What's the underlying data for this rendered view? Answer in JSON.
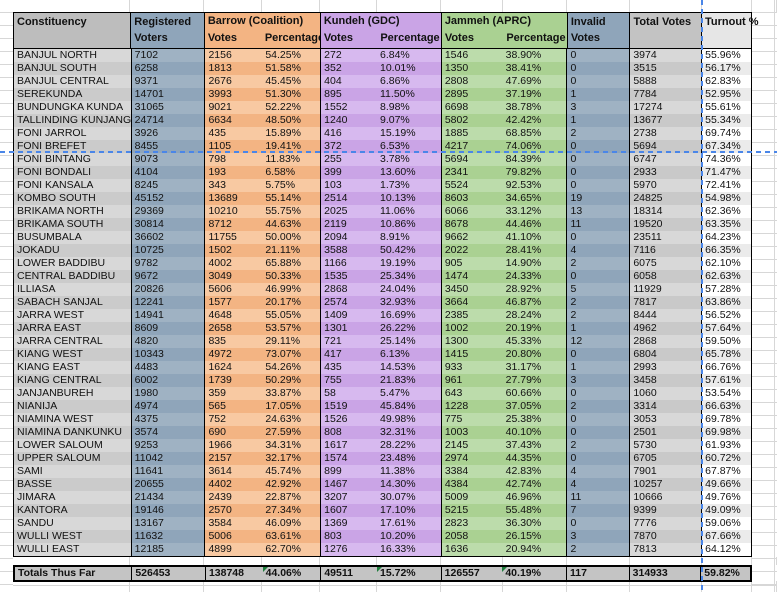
{
  "header": {
    "constituency": "Constituency",
    "registered": "Registered Voters",
    "groups": [
      {
        "name": "Barrow (Coalition)",
        "votes_label": "Votes",
        "pct_label": "Percentage"
      },
      {
        "name": "Kundeh (GDC)",
        "votes_label": "Votes",
        "pct_label": "Percentage"
      },
      {
        "name": "Jammeh (APRC)",
        "votes_label": "Votes",
        "pct_label": "Percentage"
      }
    ],
    "invalid": "Invalid Votes",
    "total": "Total Votes",
    "turnout": "Turnout %"
  },
  "rows": [
    [
      "BANJUL NORTH",
      "7102",
      "2156",
      "54.25%",
      "272",
      "6.84%",
      "1546",
      "38.90%",
      "0",
      "3974",
      "55.96%"
    ],
    [
      "BANJUL SOUTH",
      "6258",
      "1813",
      "51.58%",
      "352",
      "10.01%",
      "1350",
      "38.41%",
      "0",
      "3515",
      "56.17%"
    ],
    [
      "BANJUL CENTRAL",
      "9371",
      "2676",
      "45.45%",
      "404",
      "6.86%",
      "2808",
      "47.69%",
      "0",
      "5888",
      "62.83%"
    ],
    [
      "SEREKUNDA",
      "14701",
      "3993",
      "51.30%",
      "895",
      "11.50%",
      "2895",
      "37.19%",
      "1",
      "7784",
      "52.95%"
    ],
    [
      "BUNDUNGKA KUNDA",
      "31065",
      "9021",
      "52.22%",
      "1552",
      "8.98%",
      "6698",
      "38.78%",
      "3",
      "17274",
      "55.61%"
    ],
    [
      "TALLINDING KUNJANG",
      "24714",
      "6634",
      "48.50%",
      "1240",
      "9.07%",
      "5802",
      "42.42%",
      "1",
      "13677",
      "55.34%"
    ],
    [
      "FONI JARROL",
      "3926",
      "435",
      "15.89%",
      "416",
      "15.19%",
      "1885",
      "68.85%",
      "2",
      "2738",
      "69.74%"
    ],
    [
      "FONI BREFET",
      "8455",
      "1105",
      "19.41%",
      "372",
      "6.53%",
      "4217",
      "74.06%",
      "0",
      "5694",
      "67.34%"
    ],
    [
      "FONI BINTANG",
      "9073",
      "798",
      "11.83%",
      "255",
      "3.78%",
      "5694",
      "84.39%",
      "0",
      "6747",
      "74.36%"
    ],
    [
      "FONI BONDALI",
      "4104",
      "193",
      "6.58%",
      "399",
      "13.60%",
      "2341",
      "79.82%",
      "0",
      "2933",
      "71.47%"
    ],
    [
      "FONI KANSALA",
      "8245",
      "343",
      "5.75%",
      "103",
      "1.73%",
      "5524",
      "92.53%",
      "0",
      "5970",
      "72.41%"
    ],
    [
      "KOMBO SOUTH",
      "45152",
      "13689",
      "55.14%",
      "2514",
      "10.13%",
      "8603",
      "34.65%",
      "19",
      "24825",
      "54.98%"
    ],
    [
      "BRIKAMA NORTH",
      "29369",
      "10210",
      "55.75%",
      "2025",
      "11.06%",
      "6066",
      "33.12%",
      "13",
      "18314",
      "62.36%"
    ],
    [
      "BRIKAMA SOUTH",
      "30814",
      "8712",
      "44.63%",
      "2119",
      "10.86%",
      "8678",
      "44.46%",
      "11",
      "19520",
      "63.35%"
    ],
    [
      "BUSUMBALA",
      "36602",
      "11755",
      "50.00%",
      "2094",
      "8.91%",
      "9662",
      "41.10%",
      "0",
      "23511",
      "64.23%"
    ],
    [
      "JOKADU",
      "10725",
      "1502",
      "21.11%",
      "3588",
      "50.42%",
      "2022",
      "28.41%",
      "4",
      "7116",
      "66.35%"
    ],
    [
      "LOWER BADDIBU",
      "9782",
      "4002",
      "65.88%",
      "1166",
      "19.19%",
      "905",
      "14.90%",
      "2",
      "6075",
      "62.10%"
    ],
    [
      "CENTRAL BADDIBU",
      "9672",
      "3049",
      "50.33%",
      "1535",
      "25.34%",
      "1474",
      "24.33%",
      "0",
      "6058",
      "62.63%"
    ],
    [
      "ILLIASA",
      "20826",
      "5606",
      "46.99%",
      "2868",
      "24.04%",
      "3450",
      "28.92%",
      "5",
      "11929",
      "57.28%"
    ],
    [
      "SABACH SANJAL",
      "12241",
      "1577",
      "20.17%",
      "2574",
      "32.93%",
      "3664",
      "46.87%",
      "2",
      "7817",
      "63.86%"
    ],
    [
      "JARRA WEST",
      "14941",
      "4648",
      "55.05%",
      "1409",
      "16.69%",
      "2385",
      "28.24%",
      "2",
      "8444",
      "56.52%"
    ],
    [
      "JARRA EAST",
      "8609",
      "2658",
      "53.57%",
      "1301",
      "26.22%",
      "1002",
      "20.19%",
      "1",
      "4962",
      "57.64%"
    ],
    [
      "JARRA CENTRAL",
      "4820",
      "835",
      "29.11%",
      "721",
      "25.14%",
      "1300",
      "45.33%",
      "12",
      "2868",
      "59.50%"
    ],
    [
      "KIANG WEST",
      "10343",
      "4972",
      "73.07%",
      "417",
      "6.13%",
      "1415",
      "20.80%",
      "0",
      "6804",
      "65.78%"
    ],
    [
      "KIANG EAST",
      "4483",
      "1624",
      "54.26%",
      "435",
      "14.53%",
      "933",
      "31.17%",
      "1",
      "2993",
      "66.76%"
    ],
    [
      "KIANG CENTRAL",
      "6002",
      "1739",
      "50.29%",
      "755",
      "21.83%",
      "961",
      "27.79%",
      "3",
      "3458",
      "57.61%"
    ],
    [
      "JANJANBUREH",
      "1980",
      "359",
      "33.87%",
      "58",
      "5.47%",
      "643",
      "60.66%",
      "0",
      "1060",
      "53.54%"
    ],
    [
      "NIANIJA",
      "4974",
      "565",
      "17.05%",
      "1519",
      "45.84%",
      "1228",
      "37.05%",
      "2",
      "3314",
      "66.63%"
    ],
    [
      "NIAMINA WEST",
      "4375",
      "752",
      "24.63%",
      "1526",
      "49.98%",
      "775",
      "25.38%",
      "0",
      "3053",
      "69.78%"
    ],
    [
      "NIAMINA DANKUNKU",
      "3574",
      "690",
      "27.59%",
      "808",
      "32.31%",
      "1003",
      "40.10%",
      "0",
      "2501",
      "69.98%"
    ],
    [
      "LOWER SALOUM",
      "9253",
      "1966",
      "34.31%",
      "1617",
      "28.22%",
      "2145",
      "37.43%",
      "2",
      "5730",
      "61.93%"
    ],
    [
      "UPPER SALOUM",
      "11042",
      "2157",
      "32.17%",
      "1574",
      "23.48%",
      "2974",
      "44.35%",
      "0",
      "6705",
      "60.72%"
    ],
    [
      "SAMI",
      "11641",
      "3614",
      "45.74%",
      "899",
      "11.38%",
      "3384",
      "42.83%",
      "4",
      "7901",
      "67.87%"
    ],
    [
      "BASSE",
      "20655",
      "4402",
      "42.92%",
      "1467",
      "14.30%",
      "4384",
      "42.74%",
      "4",
      "10257",
      "49.66%"
    ],
    [
      "JIMARA",
      "21434",
      "2439",
      "22.87%",
      "3207",
      "30.07%",
      "5009",
      "46.96%",
      "11",
      "10666",
      "49.76%"
    ],
    [
      "KANTORA",
      "19146",
      "2570",
      "27.34%",
      "1607",
      "17.10%",
      "5215",
      "55.48%",
      "7",
      "9399",
      "49.09%"
    ],
    [
      "SANDU",
      "13167",
      "3584",
      "46.09%",
      "1369",
      "17.61%",
      "2823",
      "36.30%",
      "0",
      "7776",
      "59.06%"
    ],
    [
      "WULLI WEST",
      "11632",
      "5006",
      "63.61%",
      "803",
      "10.20%",
      "2058",
      "26.15%",
      "3",
      "7870",
      "67.66%"
    ],
    [
      "WULLI EAST",
      "12185",
      "4899",
      "62.70%",
      "1276",
      "16.33%",
      "1636",
      "20.94%",
      "2",
      "7813",
      "64.12%"
    ]
  ],
  "totals": {
    "label": "Totals Thus Far",
    "registered": "526453",
    "barrow_votes": "138748",
    "barrow_pct": "44.06%",
    "kundeh_votes": "49511",
    "kundeh_pct": "15.72%",
    "jammeh_votes": "126557",
    "jammeh_pct": "40.19%",
    "invalid": "117",
    "total": "314933",
    "turnout": "59.82%"
  },
  "error_flagged_totals": [
    "barrow_pct",
    "kundeh_pct",
    "jammeh_pct"
  ],
  "colors": {
    "barrow_accent": "#f3b483",
    "kundeh_accent": "#caa4e6",
    "jammeh_accent": "#aad192",
    "registered_invalid_accent": "#8fa5ba",
    "header_gray": "#bdbdbd",
    "totals_gray": "#c4c4c4",
    "page_break_blue": "#4a86e8",
    "error_flag_green": "#1e7d3c"
  }
}
